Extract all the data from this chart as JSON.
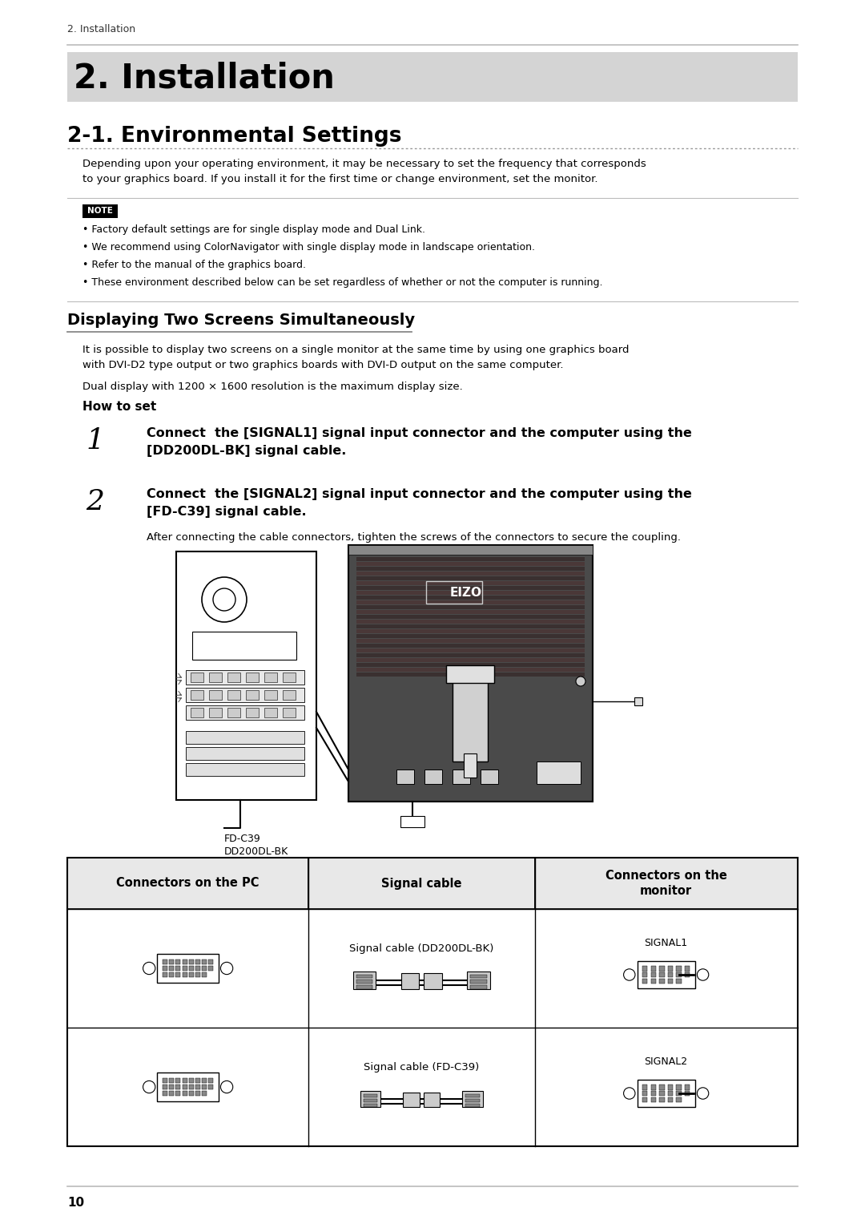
{
  "page_bg": "#ffffff",
  "breadcrumb": "2. Installation",
  "chapter_title": "2. Installation",
  "chapter_bg": "#d4d4d4",
  "section_title": "2-1. Environmental Settings",
  "intro_text": "Depending upon your operating environment, it may be necessary to set the frequency that corresponds\nto your graphics board. If you install it for the first time or change environment, set the monitor.",
  "note_label": "NOTE",
  "note_bullets": [
    "• Factory default settings are for single display mode and Dual Link.",
    "• We recommend using ColorNavigator with single display mode in landscape orientation.",
    "• Refer to the manual of the graphics board.",
    "• These environment described below can be set regardless of whether or not the computer is running."
  ],
  "subsection_title": "Displaying Two Screens Simultaneously",
  "body_text1": "It is possible to display two screens on a single monitor at the same time by using one graphics board\nwith DVI-D2 type output or two graphics boards with DVI-D output on the same computer.",
  "body_text2": "Dual display with 1200 × 1600 resolution is the maximum display size.",
  "howtoset_label": "How to set",
  "step1_num": "1",
  "step1_bold": "Connect  the [SIGNAL1] signal input connector and the computer using the\n[DD200DL-BK] signal cable.",
  "step2_num": "2",
  "step2_bold": "Connect  the [SIGNAL2] signal input connector and the computer using the\n[FD-C39] signal cable.",
  "after_step_text": "After connecting the cable connectors, tighten the screws of the connectors to secure the coupling.",
  "label_fd_c39": "FD-C39",
  "label_dd200dl_bk": "DD200DL-BK",
  "table_header1": "Connectors on the PC",
  "table_header2": "Signal cable",
  "table_header3": "Connectors on the\nmonitor",
  "table_row1_col2": "Signal cable (DD200DL-BK)",
  "table_row1_col3_label": "SIGNAL1",
  "table_row2_col2": "Signal cable (FD-C39)",
  "table_row2_col3_label": "SIGNAL2",
  "page_number": "10",
  "text_color": "#000000",
  "lm": 0.078,
  "rm": 0.922,
  "cl": 0.095,
  "cr": 0.91
}
